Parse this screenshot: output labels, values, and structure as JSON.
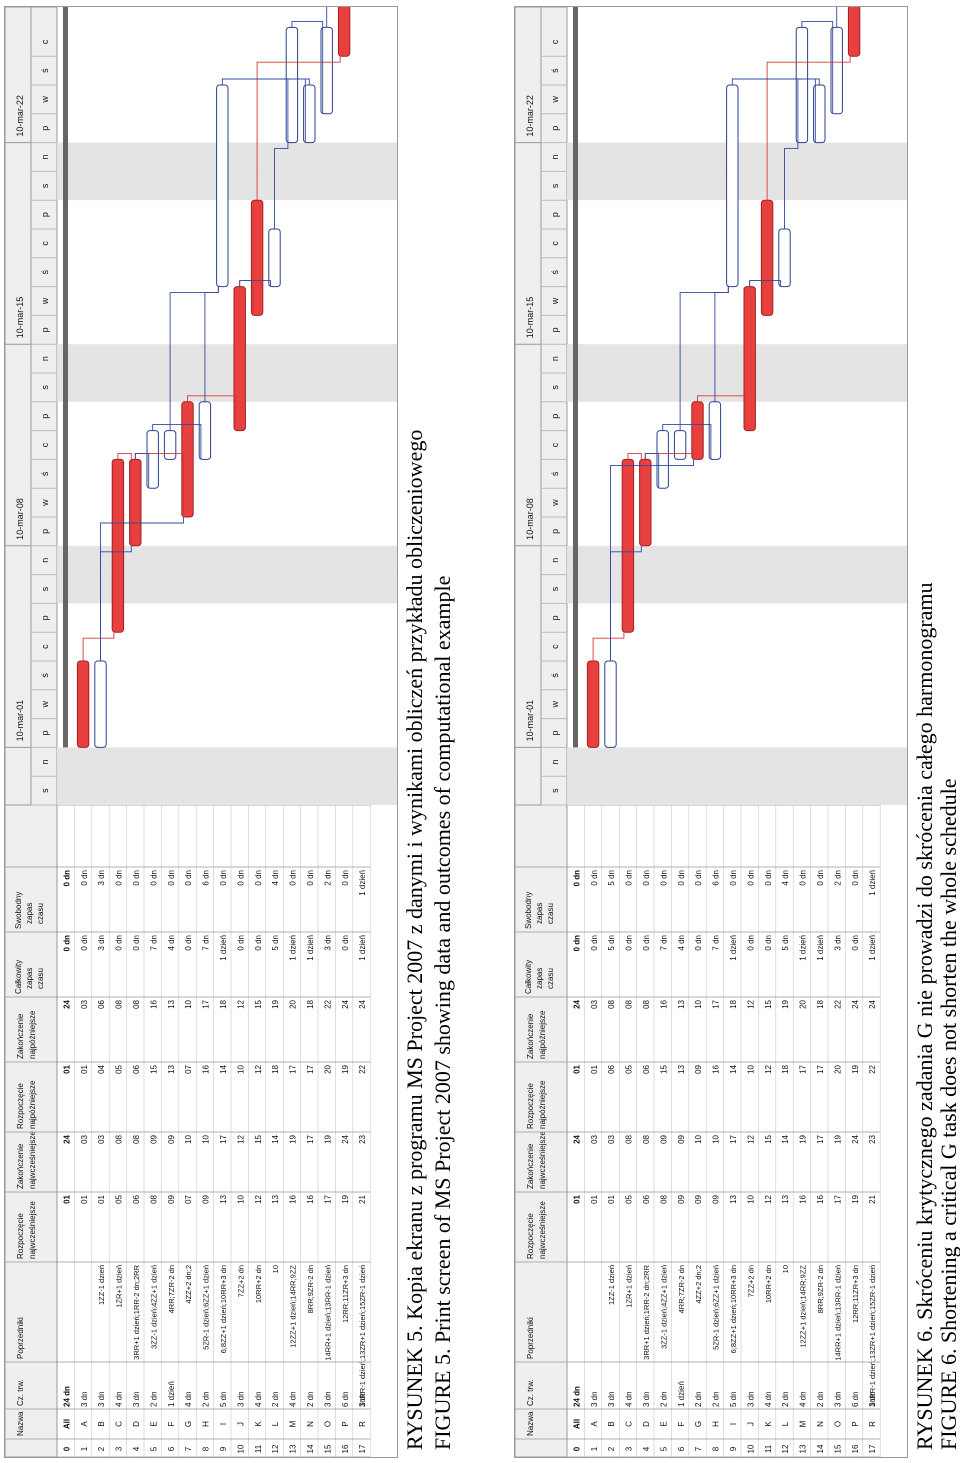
{
  "figures": [
    {
      "id": "fig5",
      "caption_pl": "RYSUNEK 5. Kopia ekranu z programu MS Project 2007 z danymi i wynikami obliczeń przykładu obliczeniowego",
      "caption_en": "FIGURE 5. Print screen of MS Project 2007 showing data and outcomes of computational example"
    },
    {
      "id": "fig6",
      "caption_pl": "RYSUNEK 6. Skróceniu krytycznego zadania G nie prowadzi do skrócenia całego harmonogramu",
      "caption_en": "FIGURE 6. Shortening a critical G task does not shorten the whole schedule"
    }
  ],
  "table": {
    "headers": {
      "id": "",
      "name": "Nazwa",
      "duration": "Cz. trw.",
      "pred": "Poprzedniki",
      "es1": "Rozpoczęcie",
      "es2": "najwcześniejsze",
      "ef1": "Zakończenie",
      "ef2": "najwcześniejsze",
      "ls1": "Rozpoczęcie",
      "ls2": "najpóźniejsze",
      "lf1": "Zakończenie",
      "lf2": "najpóźniejsze",
      "tf1": "Całkowity",
      "tf2": "zapas",
      "tf3": "czasu",
      "ff1": "Swobodny",
      "ff2": "zapas",
      "ff3": "czasu"
    },
    "summary": {
      "id": "0",
      "name": "All",
      "duration": "24 dn",
      "es": "01",
      "ef": "24",
      "ls": "01",
      "lf": "24",
      "tf": "0 dn",
      "ff": "0 dn"
    }
  },
  "fig5_rows": [
    {
      "id": "1",
      "name": "A",
      "dur": "3 dn",
      "pred": "",
      "es": "01",
      "ef": "03",
      "ls": "01",
      "lf": "03",
      "tf": "0 dn",
      "ff": "0 dn"
    },
    {
      "id": "2",
      "name": "B",
      "dur": "3 dn",
      "pred": "1ZZ-1 dzień",
      "es": "01",
      "ef": "03",
      "ls": "04",
      "lf": "06",
      "tf": "3 dn",
      "ff": "3 dn"
    },
    {
      "id": "3",
      "name": "C",
      "dur": "4 dn",
      "pred": "1ZR+1 dzień",
      "es": "05",
      "ef": "08",
      "ls": "05",
      "lf": "08",
      "tf": "0 dn",
      "ff": "0 dn"
    },
    {
      "id": "4",
      "name": "D",
      "dur": "3 dn",
      "pred": "3RR+1 dzień;1RR-2 dn;2RR",
      "es": "06",
      "ef": "08",
      "ls": "06",
      "lf": "08",
      "tf": "0 dn",
      "ff": "0 dn"
    },
    {
      "id": "5",
      "name": "E",
      "dur": "2 dn",
      "pred": "3ZZ-1 dzień;4ZZ+1 dzień",
      "es": "08",
      "ef": "09",
      "ls": "15",
      "lf": "16",
      "tf": "7 dn",
      "ff": "0 dn"
    },
    {
      "id": "6",
      "name": "F",
      "dur": "1 dzień",
      "pred": "4RR;7ZR-2 dn",
      "es": "09",
      "ef": "09",
      "ls": "13",
      "lf": "13",
      "tf": "4 dn",
      "ff": "0 dn"
    },
    {
      "id": "7",
      "name": "G",
      "dur": "4 dn",
      "pred": "4ZZ+2 dn;2",
      "es": "07",
      "ef": "10",
      "ls": "07",
      "lf": "10",
      "tf": "0 dn",
      "ff": "0 dn"
    },
    {
      "id": "8",
      "name": "H",
      "dur": "2 dn",
      "pred": "5ZR-1 dzień;6ZZ+1 dzień",
      "es": "09",
      "ef": "10",
      "ls": "16",
      "lf": "17",
      "tf": "7 dn",
      "ff": "6 dn"
    },
    {
      "id": "9",
      "name": "I",
      "dur": "5 dn",
      "pred": "6;8ZZ+1 dzień;10RR+3 dn",
      "es": "13",
      "ef": "17",
      "ls": "14",
      "lf": "18",
      "tf": "1 dzień",
      "ff": "0 dn"
    },
    {
      "id": "10",
      "name": "J",
      "dur": "3 dn",
      "pred": "7ZZ+2 dn",
      "es": "10",
      "ef": "12",
      "ls": "10",
      "lf": "12",
      "tf": "0 dn",
      "ff": "0 dn"
    },
    {
      "id": "11",
      "name": "K",
      "dur": "4 dn",
      "pred": "10RR+2 dn",
      "es": "12",
      "ef": "15",
      "ls": "12",
      "lf": "15",
      "tf": "0 dn",
      "ff": "0 dn"
    },
    {
      "id": "12",
      "name": "L",
      "dur": "2 dn",
      "pred": "10",
      "es": "13",
      "ef": "14",
      "ls": "18",
      "lf": "19",
      "tf": "5 dn",
      "ff": "4 dn"
    },
    {
      "id": "13",
      "name": "M",
      "dur": "4 dn",
      "pred": "12ZZ+1 dzień;14RR;9ZZ",
      "es": "16",
      "ef": "19",
      "ls": "17",
      "lf": "20",
      "tf": "1 dzień",
      "ff": "0 dn"
    },
    {
      "id": "14",
      "name": "N",
      "dur": "2 dn",
      "pred": "8RR;9ZR-2 dn",
      "es": "16",
      "ef": "17",
      "ls": "17",
      "lf": "18",
      "tf": "1 dzień",
      "ff": "0 dn"
    },
    {
      "id": "15",
      "name": "O",
      "dur": "3 dn",
      "pred": "14RR+1 dzień;13RR-1 dzień",
      "es": "17",
      "ef": "19",
      "ls": "20",
      "lf": "22",
      "tf": "3 dn",
      "ff": "2 dn"
    },
    {
      "id": "16",
      "name": "P",
      "dur": "6 dn",
      "pred": "12RR;11ZR+3 dn",
      "es": "19",
      "ef": "24",
      "ls": "19",
      "lf": "24",
      "tf": "0 dn",
      "ff": "0 dn"
    },
    {
      "id": "17",
      "name": "R",
      "dur": "3 dn",
      "pred": "16RR-1 dzień;13ZR+1 dzień;15ZR-1 dzień",
      "es": "21",
      "ef": "23",
      "ls": "22",
      "lf": "24",
      "tf": "1 dzień",
      "ff": "1 dzień"
    }
  ],
  "fig6_rows": [
    {
      "id": "1",
      "name": "A",
      "dur": "3 dn",
      "pred": "",
      "es": "01",
      "ef": "03",
      "ls": "01",
      "lf": "03",
      "tf": "0 dn",
      "ff": "0 dn"
    },
    {
      "id": "2",
      "name": "B",
      "dur": "3 dn",
      "pred": "1ZZ-1 dzień",
      "es": "01",
      "ef": "03",
      "ls": "06",
      "lf": "08",
      "tf": "5 dn",
      "ff": "5 dn"
    },
    {
      "id": "3",
      "name": "C",
      "dur": "4 dn",
      "pred": "1ZR+1 dzień",
      "es": "05",
      "ef": "08",
      "ls": "05",
      "lf": "08",
      "tf": "0 dn",
      "ff": "0 dn"
    },
    {
      "id": "4",
      "name": "D",
      "dur": "3 dn",
      "pred": "3RR+1 dzień;1RR-2 dn;2RR",
      "es": "06",
      "ef": "08",
      "ls": "06",
      "lf": "08",
      "tf": "0 dn",
      "ff": "0 dn"
    },
    {
      "id": "5",
      "name": "E",
      "dur": "2 dn",
      "pred": "3ZZ-1 dzień;4ZZ+1 dzień",
      "es": "08",
      "ef": "09",
      "ls": "15",
      "lf": "16",
      "tf": "7 dn",
      "ff": "0 dn"
    },
    {
      "id": "6",
      "name": "F",
      "dur": "1 dzień",
      "pred": "4RR;7ZR-2 dn",
      "es": "09",
      "ef": "09",
      "ls": "13",
      "lf": "13",
      "tf": "4 dn",
      "ff": "0 dn"
    },
    {
      "id": "7",
      "name": "G",
      "dur": "2 dn",
      "pred": "4ZZ+2 dn;2",
      "es": "09",
      "ef": "10",
      "ls": "09",
      "lf": "10",
      "tf": "0 dn",
      "ff": "0 dn"
    },
    {
      "id": "8",
      "name": "H",
      "dur": "2 dn",
      "pred": "5ZR-1 dzień;6ZZ+1 dzień",
      "es": "09",
      "ef": "10",
      "ls": "16",
      "lf": "17",
      "tf": "7 dn",
      "ff": "6 dn"
    },
    {
      "id": "9",
      "name": "I",
      "dur": "5 dn",
      "pred": "6;8ZZ+1 dzień;10RR+3 dn",
      "es": "13",
      "ef": "17",
      "ls": "14",
      "lf": "18",
      "tf": "1 dzień",
      "ff": "0 dn"
    },
    {
      "id": "10",
      "name": "J",
      "dur": "3 dn",
      "pred": "7ZZ+2 dn",
      "es": "10",
      "ef": "12",
      "ls": "10",
      "lf": "12",
      "tf": "0 dn",
      "ff": "0 dn"
    },
    {
      "id": "11",
      "name": "K",
      "dur": "4 dn",
      "pred": "10RR+2 dn",
      "es": "12",
      "ef": "15",
      "ls": "12",
      "lf": "15",
      "tf": "0 dn",
      "ff": "0 dn"
    },
    {
      "id": "12",
      "name": "L",
      "dur": "2 dn",
      "pred": "10",
      "es": "13",
      "ef": "14",
      "ls": "18",
      "lf": "19",
      "tf": "5 dn",
      "ff": "4 dn"
    },
    {
      "id": "13",
      "name": "M",
      "dur": "4 dn",
      "pred": "12ZZ+1 dzień;14RR;9ZZ",
      "es": "16",
      "ef": "19",
      "ls": "17",
      "lf": "20",
      "tf": "1 dzień",
      "ff": "0 dn"
    },
    {
      "id": "14",
      "name": "N",
      "dur": "2 dn",
      "pred": "8RR;9ZR-2 dn",
      "es": "16",
      "ef": "17",
      "ls": "17",
      "lf": "18",
      "tf": "1 dzień",
      "ff": "0 dn"
    },
    {
      "id": "15",
      "name": "O",
      "dur": "3 dn",
      "pred": "14RR+1 dzień;13RR-1 dzień",
      "es": "17",
      "ef": "19",
      "ls": "20",
      "lf": "22",
      "tf": "3 dn",
      "ff": "2 dn"
    },
    {
      "id": "16",
      "name": "P",
      "dur": "6 dn",
      "pred": "12RR;11ZR+3 dn",
      "es": "19",
      "ef": "24",
      "ls": "19",
      "lf": "24",
      "tf": "0 dn",
      "ff": "0 dn"
    },
    {
      "id": "17",
      "name": "R",
      "dur": "3 dn",
      "pred": "16RR-1 dzień;13ZR+1 dzień;15ZR-1 dzień",
      "es": "21",
      "ef": "23",
      "ls": "22",
      "lf": "24",
      "tf": "1 dzień",
      "ff": "1 dzień"
    }
  ],
  "timescale": {
    "weeks": [
      "10-mar-01",
      "10-mar-08",
      "10-mar-15",
      "10-mar-22"
    ],
    "days": [
      "s",
      "n",
      "p",
      "w",
      "ś",
      "c",
      "p",
      "s",
      "n",
      "p",
      "w",
      "ś",
      "c",
      "p",
      "s",
      "n",
      "p",
      "w",
      "ś",
      "c",
      "p",
      "s",
      "n",
      "p",
      "w",
      "ś",
      "c"
    ]
  },
  "gantt_fig5": {
    "critical": [
      true,
      false,
      true,
      true,
      false,
      false,
      true,
      false,
      false,
      true,
      true,
      false,
      false,
      false,
      false,
      true,
      false
    ],
    "start_day": [
      1,
      1,
      5,
      6,
      8,
      9,
      7,
      9,
      13,
      10,
      12,
      13,
      16,
      16,
      17,
      19,
      21
    ],
    "finish_day": [
      3,
      3,
      8,
      8,
      9,
      9,
      10,
      10,
      17,
      12,
      15,
      14,
      19,
      17,
      19,
      24,
      23
    ]
  },
  "gantt_fig6": {
    "critical": [
      true,
      false,
      true,
      true,
      false,
      false,
      true,
      false,
      false,
      true,
      true,
      false,
      false,
      false,
      false,
      true,
      false
    ],
    "start_day": [
      1,
      1,
      5,
      6,
      8,
      9,
      9,
      9,
      13,
      10,
      12,
      13,
      16,
      16,
      17,
      19,
      21
    ],
    "finish_day": [
      3,
      3,
      8,
      8,
      9,
      9,
      10,
      10,
      17,
      12,
      15,
      14,
      19,
      17,
      19,
      24,
      23
    ]
  },
  "colors": {
    "critical": "#e8403f",
    "normal_outline": "#2b3f8f",
    "link_red": "#d63a3a",
    "link_blue": "#3348a0",
    "weekend": "#e4e4e4",
    "header": "#efefef"
  }
}
